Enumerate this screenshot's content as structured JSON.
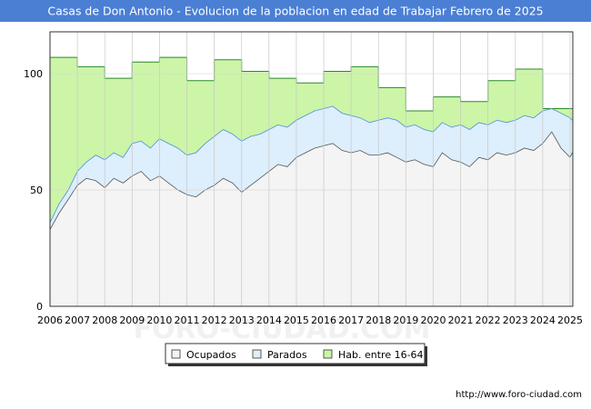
{
  "chart_data": {
    "type": "area",
    "title": "Casas de Don Antonio - Evolucion de la poblacion en edad de Trabajar Febrero de 2025",
    "xlabel": "",
    "ylabel": "",
    "xlim": [
      2006,
      2025.1
    ],
    "ylim": [
      0,
      118
    ],
    "y_ticks": [
      0,
      50,
      100
    ],
    "x_ticks": [
      "2006",
      "2007",
      "2008",
      "2009",
      "2010",
      "2011",
      "2012",
      "2013",
      "2014",
      "2015",
      "2016",
      "2017",
      "2018",
      "2019",
      "2020",
      "2021",
      "2022",
      "2023",
      "2024",
      "2025"
    ],
    "grid": true,
    "legend_position": "bottom",
    "series": [
      {
        "name": "Hab. entre 16-64",
        "color": "#ccf5a8",
        "line_color": "#2a8a2a",
        "x": [
          2006,
          2007,
          2008,
          2009,
          2010,
          2011,
          2012,
          2013,
          2014,
          2015,
          2016,
          2017,
          2018,
          2019,
          2020,
          2021,
          2022,
          2023,
          2024
        ],
        "values": [
          107,
          103,
          98,
          105,
          107,
          97,
          106,
          101,
          98,
          96,
          101,
          103,
          94,
          84,
          90,
          88,
          97,
          102,
          85
        ]
      },
      {
        "name": "Parados",
        "color": "#ddeefc",
        "line_color": "#4a90d9",
        "x": [
          2006.0,
          2006.33,
          2006.67,
          2007.0,
          2007.33,
          2007.67,
          2008.0,
          2008.33,
          2008.67,
          2009.0,
          2009.33,
          2009.67,
          2010.0,
          2010.33,
          2010.67,
          2011.0,
          2011.33,
          2011.67,
          2012.0,
          2012.33,
          2012.67,
          2013.0,
          2013.33,
          2013.67,
          2014.0,
          2014.33,
          2014.67,
          2015.0,
          2015.33,
          2015.67,
          2016.0,
          2016.33,
          2016.67,
          2017.0,
          2017.33,
          2017.67,
          2018.0,
          2018.33,
          2018.67,
          2019.0,
          2019.33,
          2019.67,
          2020.0,
          2020.33,
          2020.67,
          2021.0,
          2021.33,
          2021.67,
          2022.0,
          2022.33,
          2022.67,
          2023.0,
          2023.33,
          2023.67,
          2024.0,
          2024.33,
          2024.67,
          2025.0,
          2025.08
        ],
        "values": [
          36,
          44,
          50,
          58,
          62,
          65,
          63,
          66,
          64,
          70,
          71,
          68,
          72,
          70,
          68,
          65,
          66,
          70,
          73,
          76,
          74,
          71,
          73,
          74,
          76,
          78,
          77,
          80,
          82,
          84,
          85,
          86,
          83,
          82,
          81,
          79,
          80,
          81,
          80,
          77,
          78,
          76,
          75,
          79,
          77,
          78,
          76,
          79,
          78,
          80,
          79,
          80,
          82,
          81,
          84,
          85,
          83,
          81,
          80
        ]
      },
      {
        "name": "Ocupados",
        "color": "#f4f4f4",
        "line_color": "#555555",
        "x": [
          2006.0,
          2006.33,
          2006.67,
          2007.0,
          2007.33,
          2007.67,
          2008.0,
          2008.33,
          2008.67,
          2009.0,
          2009.33,
          2009.67,
          2010.0,
          2010.33,
          2010.67,
          2011.0,
          2011.33,
          2011.67,
          2012.0,
          2012.33,
          2012.67,
          2013.0,
          2013.33,
          2013.67,
          2014.0,
          2014.33,
          2014.67,
          2015.0,
          2015.33,
          2015.67,
          2016.0,
          2016.33,
          2016.67,
          2017.0,
          2017.33,
          2017.67,
          2018.0,
          2018.33,
          2018.67,
          2019.0,
          2019.33,
          2019.67,
          2020.0,
          2020.33,
          2020.67,
          2021.0,
          2021.33,
          2021.67,
          2022.0,
          2022.33,
          2022.67,
          2023.0,
          2023.33,
          2023.67,
          2024.0,
          2024.33,
          2024.67,
          2025.0,
          2025.08
        ],
        "values": [
          33,
          40,
          46,
          52,
          55,
          54,
          51,
          55,
          53,
          56,
          58,
          54,
          56,
          53,
          50,
          48,
          47,
          50,
          52,
          55,
          53,
          49,
          52,
          55,
          58,
          61,
          60,
          64,
          66,
          68,
          69,
          70,
          67,
          66,
          67,
          65,
          65,
          66,
          64,
          62,
          63,
          61,
          60,
          66,
          63,
          62,
          60,
          64,
          63,
          66,
          65,
          66,
          68,
          67,
          70,
          75,
          68,
          64,
          66
        ]
      }
    ],
    "legend": [
      "Ocupados",
      "Parados",
      "Hab. entre 16-64"
    ],
    "watermark": "FORO-CIUDAD.COM",
    "source": "http://www.foro-ciudad.com"
  }
}
